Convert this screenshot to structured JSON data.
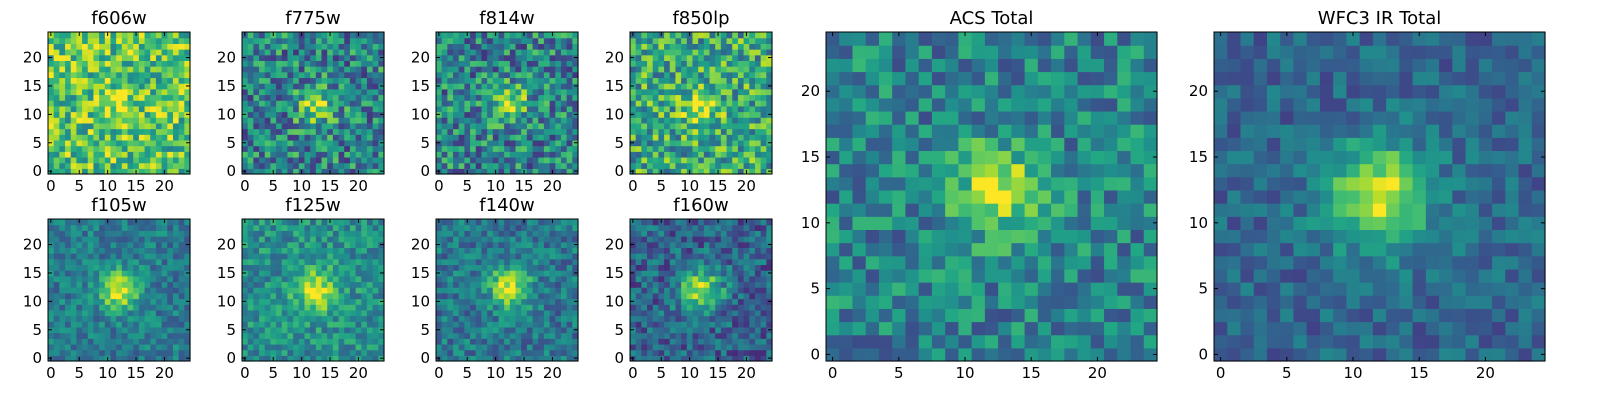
{
  "figure_title": "",
  "chart_data": [
    {
      "type": "heatmap",
      "title": "f606w",
      "grid": 24,
      "xlim": [
        0,
        24
      ],
      "ylim": [
        0,
        24
      ],
      "xticks": [
        0,
        5,
        10,
        15,
        20
      ],
      "yticks": [
        0,
        5,
        10,
        15,
        20
      ],
      "colormap": "viridis",
      "source_center": [
        12,
        12
      ],
      "source_peak": 0.18,
      "source_sigma": 2.2,
      "background": 0.72,
      "noise": 0.28,
      "seed": 11
    },
    {
      "type": "heatmap",
      "title": "f775w",
      "grid": 24,
      "xlim": [
        0,
        24
      ],
      "ylim": [
        0,
        24
      ],
      "xticks": [
        0,
        5,
        10,
        15,
        20
      ],
      "yticks": [
        0,
        5,
        10,
        15,
        20
      ],
      "colormap": "viridis",
      "source_center": [
        12.5,
        11.5
      ],
      "source_peak": 0.45,
      "source_sigma": 2.2,
      "background": 0.45,
      "noise": 0.3,
      "seed": 23
    },
    {
      "type": "heatmap",
      "title": "f814w",
      "grid": 24,
      "xlim": [
        0,
        24
      ],
      "ylim": [
        0,
        24
      ],
      "xticks": [
        0,
        5,
        10,
        15,
        20
      ],
      "yticks": [
        0,
        5,
        10,
        15,
        20
      ],
      "colormap": "viridis",
      "source_center": [
        12.5,
        12
      ],
      "source_peak": 0.45,
      "source_sigma": 2.2,
      "background": 0.45,
      "noise": 0.3,
      "seed": 37
    },
    {
      "type": "heatmap",
      "title": "f850lp",
      "grid": 24,
      "xlim": [
        0,
        24
      ],
      "ylim": [
        0,
        24
      ],
      "xticks": [
        0,
        5,
        10,
        15,
        20
      ],
      "yticks": [
        0,
        5,
        10,
        15,
        20
      ],
      "colormap": "viridis",
      "source_center": [
        12,
        11.5
      ],
      "source_peak": 0.3,
      "source_sigma": 2.4,
      "background": 0.6,
      "noise": 0.3,
      "seed": 41
    },
    {
      "type": "heatmap",
      "title": "f105w",
      "grid": 24,
      "xlim": [
        0,
        24
      ],
      "ylim": [
        0,
        24
      ],
      "xticks": [
        0,
        5,
        10,
        15,
        20
      ],
      "yticks": [
        0,
        5,
        10,
        15,
        20
      ],
      "colormap": "viridis",
      "source_center": [
        12,
        12
      ],
      "source_peak": 0.55,
      "source_sigma": 2.4,
      "background": 0.42,
      "noise": 0.16,
      "seed": 53
    },
    {
      "type": "heatmap",
      "title": "f125w",
      "grid": 24,
      "xlim": [
        0,
        24
      ],
      "ylim": [
        0,
        24
      ],
      "xticks": [
        0,
        5,
        10,
        15,
        20
      ],
      "yticks": [
        0,
        5,
        10,
        15,
        20
      ],
      "colormap": "viridis",
      "source_center": [
        12.5,
        12
      ],
      "source_peak": 0.45,
      "source_sigma": 2.6,
      "background": 0.5,
      "noise": 0.18,
      "seed": 67
    },
    {
      "type": "heatmap",
      "title": "f140w",
      "grid": 24,
      "xlim": [
        0,
        24
      ],
      "ylim": [
        0,
        24
      ],
      "xticks": [
        0,
        5,
        10,
        15,
        20
      ],
      "yticks": [
        0,
        5,
        10,
        15,
        20
      ],
      "colormap": "viridis",
      "source_center": [
        12.5,
        12.5
      ],
      "source_peak": 0.55,
      "source_sigma": 2.5,
      "background": 0.4,
      "noise": 0.18,
      "seed": 71
    },
    {
      "type": "heatmap",
      "title": "f160w",
      "grid": 24,
      "xlim": [
        0,
        24
      ],
      "ylim": [
        0,
        24
      ],
      "xticks": [
        0,
        5,
        10,
        15,
        20
      ],
      "yticks": [
        0,
        5,
        10,
        15,
        20
      ],
      "colormap": "viridis",
      "source_center": [
        12,
        12
      ],
      "source_peak": 0.6,
      "source_sigma": 2.6,
      "background": 0.32,
      "noise": 0.2,
      "seed": 83
    },
    {
      "type": "heatmap",
      "title": "ACS Total",
      "grid": 24,
      "xlim": [
        0,
        24
      ],
      "ylim": [
        0,
        24
      ],
      "xticks": [
        0,
        5,
        10,
        15,
        20
      ],
      "yticks": [
        0,
        5,
        10,
        15,
        20
      ],
      "colormap": "viridis",
      "source_center": [
        12.5,
        12.5
      ],
      "source_peak": 0.5,
      "source_sigma": 2.3,
      "background": 0.45,
      "noise": 0.22,
      "seed": 97
    },
    {
      "type": "heatmap",
      "title": "WFC3 IR Total",
      "grid": 24,
      "xlim": [
        0,
        24
      ],
      "ylim": [
        0,
        24
      ],
      "xticks": [
        0,
        5,
        10,
        15,
        20
      ],
      "yticks": [
        0,
        5,
        10,
        15,
        20
      ],
      "colormap": "viridis",
      "source_center": [
        12,
        12
      ],
      "source_peak": 0.62,
      "source_sigma": 2.8,
      "background": 0.33,
      "noise": 0.14,
      "seed": 109
    }
  ]
}
